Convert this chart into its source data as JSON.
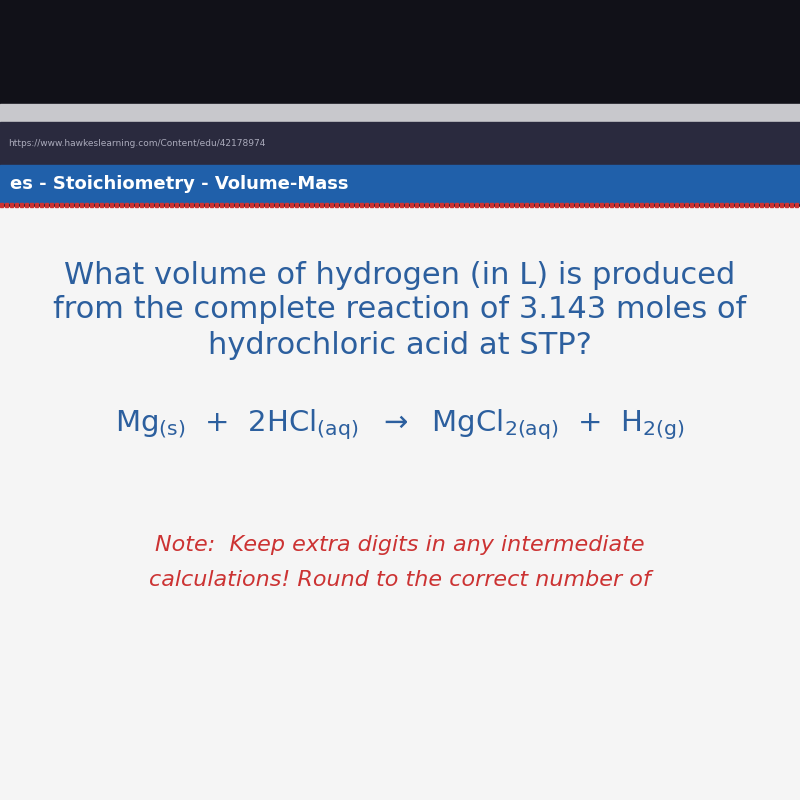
{
  "bg_very_top": "#111118",
  "bg_light_strip": "#c8c8cc",
  "bg_nav_dark": "#2a2a3e",
  "url_text": "https://www.hawkeslearning.com/Content/edu/42178974",
  "url_text_color": "#aaaabb",
  "tab_bg": "#2060aa",
  "tab_text": "es - Stoichiometry - Volume-Mass",
  "tab_text_color": "#ffffff",
  "tab_font_size": 13,
  "dotted_line_color": "#cc3333",
  "main_bg": "#f5f5f5",
  "question_text_color": "#2c5f9e",
  "question_line1": "What volume of hydrogen (in L) is produced",
  "question_line2": "from the complete reaction of 3.143 moles of",
  "question_line3": "hydrochloric acid at STP?",
  "question_font_size": 22,
  "equation_color": "#2c5f9e",
  "equation_font_size": 21,
  "note_color": "#cc3333",
  "note_line1": "Note:  Keep extra digits in any intermediate",
  "note_line2": "calculations! Round to the correct number of",
  "note_font_size": 16
}
